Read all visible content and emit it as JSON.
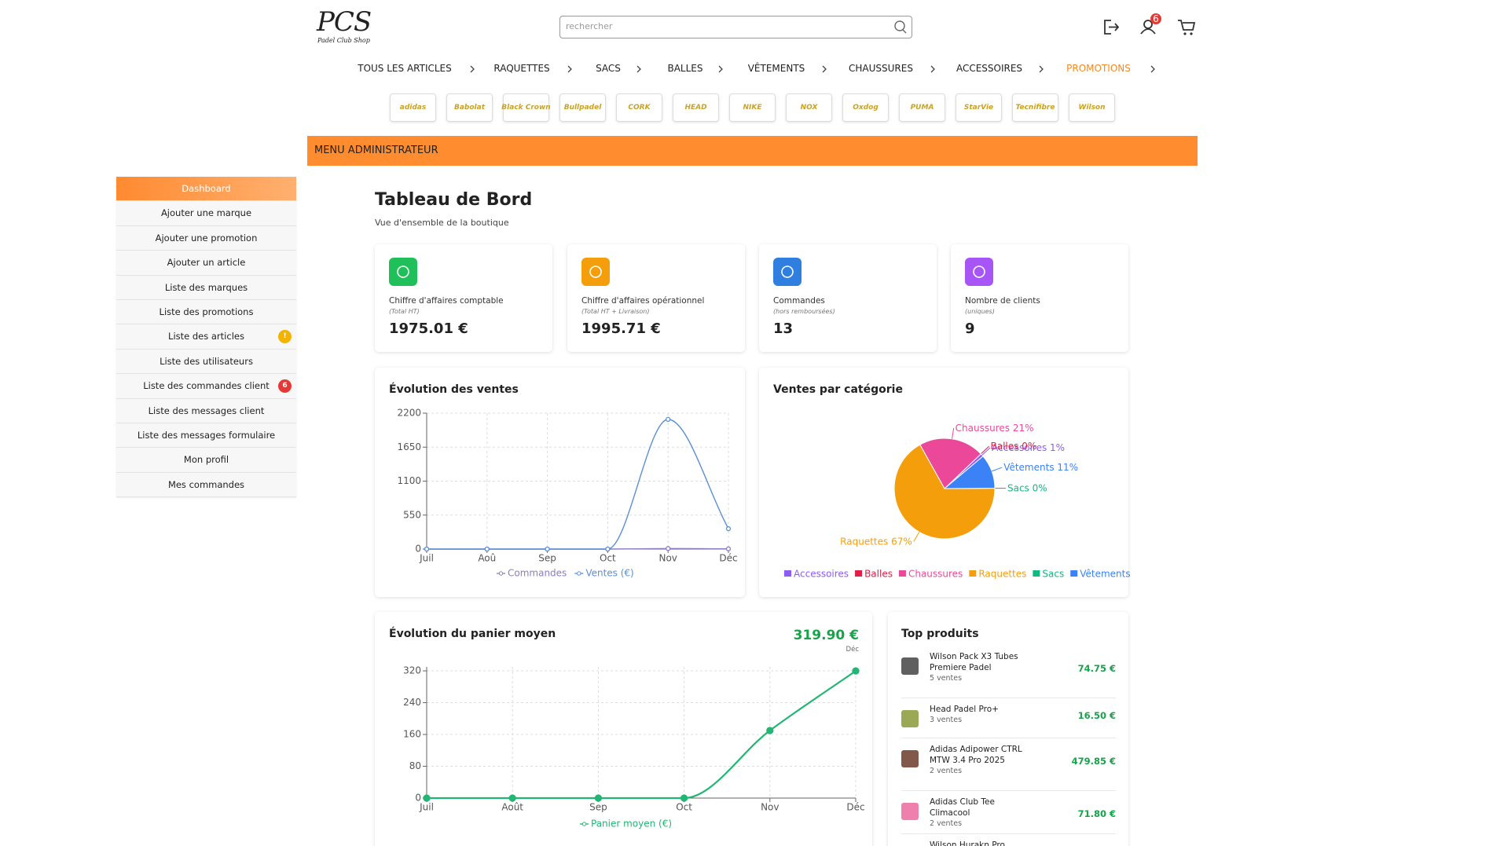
{
  "header": {
    "logo": "PCS",
    "tagline": "Padel Club Shop",
    "search_placeholder": "rechercher",
    "badge": "6"
  },
  "nav": [
    "TOUS LES ARTICLES",
    "RAQUETTES",
    "SACS",
    "BALLES",
    "VÊTEMENTS",
    "CHAUSSURES",
    "ACCESSOIRES",
    "PROMOTIONS"
  ],
  "brands": [
    "adidas",
    "Babolat",
    "Black Crown",
    "Bullpadel",
    "CORK",
    "HEAD",
    "NIKE",
    "NOX",
    "Oxdog",
    "PUMA",
    "StarVie",
    "Tecnifibre",
    "Wilson"
  ],
  "admin_bar": "MENU ADMINISTRATEUR",
  "sidebar": [
    {
      "label": "Dashboard"
    },
    {
      "label": "Ajouter une marque"
    },
    {
      "label": "Ajouter une promotion"
    },
    {
      "label": "Ajouter un article"
    },
    {
      "label": "Liste des marques"
    },
    {
      "label": "Liste des promotions"
    },
    {
      "label": "Liste des articles",
      "badge": "!"
    },
    {
      "label": "Liste des utilisateurs"
    },
    {
      "label": "Liste des commandes client",
      "badge": "6"
    },
    {
      "label": "Liste des messages client"
    },
    {
      "label": "Liste des messages formulaire"
    },
    {
      "label": "Mon profil"
    },
    {
      "label": "Mes commandes"
    }
  ],
  "page": {
    "title": "Tableau de Bord",
    "subtitle": "Vue d'ensemble de la boutique"
  },
  "stats": [
    {
      "label": "Chiffre d'affaires comptable",
      "note": "(Total HT)",
      "value": "1975.01 €"
    },
    {
      "label": "Chiffre d'affaires opérationnel",
      "note": "(Total HT + Livraison)",
      "value": "1995.71 €"
    },
    {
      "label": "Commandes",
      "note": "(hors remboursées)",
      "value": "13"
    },
    {
      "label": "Nombre de clients",
      "note": "(uniques)",
      "value": "9"
    }
  ],
  "charts": [
    {
      "type": "line",
      "title": "Évolution des ventes",
      "categories": [
        "Juil",
        "Aoû",
        "Sep",
        "Oct",
        "Nov",
        "Déc"
      ],
      "ylim": [
        0,
        2200
      ],
      "yticks": [
        0,
        550,
        1100,
        1650,
        2200
      ],
      "grid": true,
      "series": [
        {
          "name": "Commandes",
          "color": "#8e7cc3",
          "values": [
            0,
            0,
            0,
            0,
            9,
            4
          ]
        },
        {
          "name": "Ventes (€)",
          "color": "#5b8fd6",
          "values": [
            0,
            0,
            0,
            0,
            2100,
            330
          ]
        }
      ]
    },
    {
      "type": "pie",
      "title": "Ventes par catégorie",
      "categories": [
        "Accessoires",
        "Balles",
        "Chaussures",
        "Raquettes",
        "Sacs",
        "Vêtements"
      ],
      "values": [
        1,
        0,
        21,
        67,
        0,
        11
      ],
      "value_labels": [
        "1%",
        "0%",
        "21%",
        "67%",
        "0%",
        "11%"
      ],
      "colors": [
        "#8b5cf6",
        "#e11d48",
        "#ec4899",
        "#f59e0b",
        "#10b981",
        "#3b82f6"
      ]
    },
    {
      "type": "line",
      "title": "Évolution du panier moyen",
      "highlight": "319.90 €",
      "categories": [
        "Juil",
        "Août",
        "Sep",
        "Oct",
        "Nov",
        "Déc"
      ],
      "ylim": [
        0,
        330
      ],
      "yticks": [
        0,
        80,
        160,
        240,
        320
      ],
      "grid": true,
      "series": [
        {
          "name": "Panier moyen (€)",
          "color": "#22b573",
          "values": [
            0,
            0,
            0,
            0,
            170,
            319.9
          ]
        }
      ]
    }
  ],
  "top_products": {
    "title": "Top produits",
    "items": [
      {
        "name": "Wilson Pack X3 Tubes Premiere Padel",
        "sales": "5 ventes",
        "price": "74.75 €"
      },
      {
        "name": "Head Padel Pro+",
        "sales": "3 ventes",
        "price": "16.50 €"
      },
      {
        "name": "Adidas Adipower CTRL MTW 3.4 Pro 2025",
        "sales": "2 ventes",
        "price": "479.85 €"
      },
      {
        "name": "Adidas Club Tee Climacool",
        "sales": "2 ventes",
        "price": "71.80 €"
      },
      {
        "name": "Wilson Hurakn Pro",
        "sales": "",
        "price": ""
      }
    ]
  }
}
